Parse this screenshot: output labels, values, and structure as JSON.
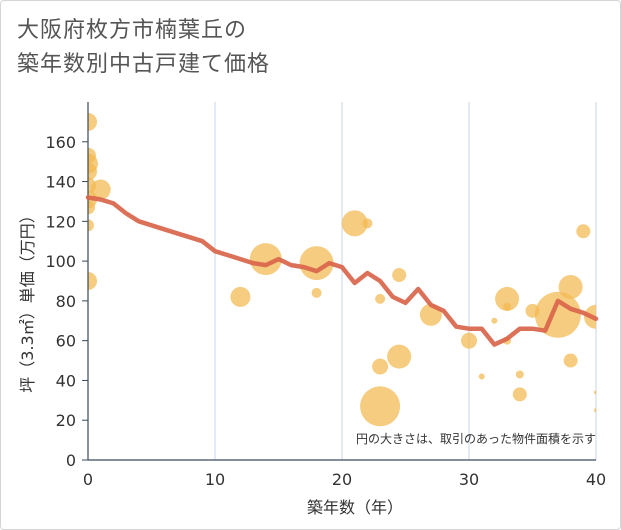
{
  "title": {
    "line1": "大阪府枚方市楠葉丘の",
    "line2": "築年数別中古戸建て価格"
  },
  "chart_data": {
    "type": "scatter",
    "xlabel": "築年数（年）",
    "ylabel": "坪（3.3㎡）単価（万円）",
    "xlim": [
      0,
      40
    ],
    "ylim": [
      0,
      180
    ],
    "x_ticks": [
      "0",
      "10",
      "20",
      "30",
      "40"
    ],
    "y_ticks": [
      "0",
      "20",
      "40",
      "60",
      "80",
      "100",
      "120",
      "140",
      "160"
    ],
    "grid": "vertical",
    "note": "円の大きさは、取引のあった物件面積を示す",
    "colors": {
      "bubble": "#f3b84f",
      "line": "#d9654b",
      "grid": "#c9d6e3",
      "axis": "#3a4a5a"
    },
    "bubbles": [
      {
        "x": 0,
        "y": 170,
        "size": 9
      },
      {
        "x": 0,
        "y": 153,
        "size": 8
      },
      {
        "x": 0,
        "y": 149,
        "size": 10
      },
      {
        "x": 0,
        "y": 145,
        "size": 9
      },
      {
        "x": 0,
        "y": 138,
        "size": 8
      },
      {
        "x": 0,
        "y": 131,
        "size": 9
      },
      {
        "x": 0,
        "y": 127,
        "size": 7
      },
      {
        "x": 0,
        "y": 118,
        "size": 6
      },
      {
        "x": 0,
        "y": 90,
        "size": 9
      },
      {
        "x": 1,
        "y": 136,
        "size": 10
      },
      {
        "x": 12,
        "y": 82,
        "size": 10
      },
      {
        "x": 14,
        "y": 101,
        "size": 16
      },
      {
        "x": 18,
        "y": 99,
        "size": 17
      },
      {
        "x": 18,
        "y": 84,
        "size": 5
      },
      {
        "x": 21,
        "y": 119,
        "size": 13
      },
      {
        "x": 22,
        "y": 119,
        "size": 5
      },
      {
        "x": 23,
        "y": 81,
        "size": 5
      },
      {
        "x": 23,
        "y": 47,
        "size": 8
      },
      {
        "x": 23,
        "y": 27,
        "size": 20
      },
      {
        "x": 24.5,
        "y": 93,
        "size": 7
      },
      {
        "x": 24.5,
        "y": 52,
        "size": 12
      },
      {
        "x": 27,
        "y": 73,
        "size": 11
      },
      {
        "x": 30,
        "y": 60,
        "size": 8
      },
      {
        "x": 31,
        "y": 42,
        "size": 3
      },
      {
        "x": 32,
        "y": 70,
        "size": 3
      },
      {
        "x": 33,
        "y": 81,
        "size": 12
      },
      {
        "x": 33,
        "y": 77,
        "size": 4
      },
      {
        "x": 33,
        "y": 60,
        "size": 4
      },
      {
        "x": 34,
        "y": 43,
        "size": 4
      },
      {
        "x": 34,
        "y": 33,
        "size": 7
      },
      {
        "x": 35,
        "y": 75,
        "size": 7
      },
      {
        "x": 37,
        "y": 73,
        "size": 23
      },
      {
        "x": 38,
        "y": 87,
        "size": 12
      },
      {
        "x": 38,
        "y": 50,
        "size": 7
      },
      {
        "x": 39,
        "y": 115,
        "size": 7
      },
      {
        "x": 40,
        "y": 72,
        "size": 12
      },
      {
        "x": 40,
        "y": 34,
        "size": 2
      },
      {
        "x": 40,
        "y": 25,
        "size": 2
      }
    ],
    "trend": {
      "x": [
        0,
        1,
        2,
        3,
        4,
        5,
        6,
        7,
        8,
        9,
        10,
        11,
        12,
        13,
        14,
        15,
        16,
        17,
        18,
        19,
        20,
        21,
        22,
        23,
        24,
        25,
        26,
        27,
        28,
        29,
        30,
        31,
        32,
        33,
        34,
        35,
        36,
        37,
        38,
        39,
        40
      ],
      "y": [
        132,
        131,
        129,
        124,
        120,
        118,
        116,
        114,
        112,
        110,
        105,
        103,
        101,
        99,
        98,
        101,
        98,
        97,
        95,
        99,
        97,
        89,
        94,
        90,
        82,
        79,
        86,
        78,
        75,
        67,
        66,
        66,
        58,
        61,
        66,
        66,
        65,
        80,
        76,
        74,
        71
      ]
    }
  }
}
